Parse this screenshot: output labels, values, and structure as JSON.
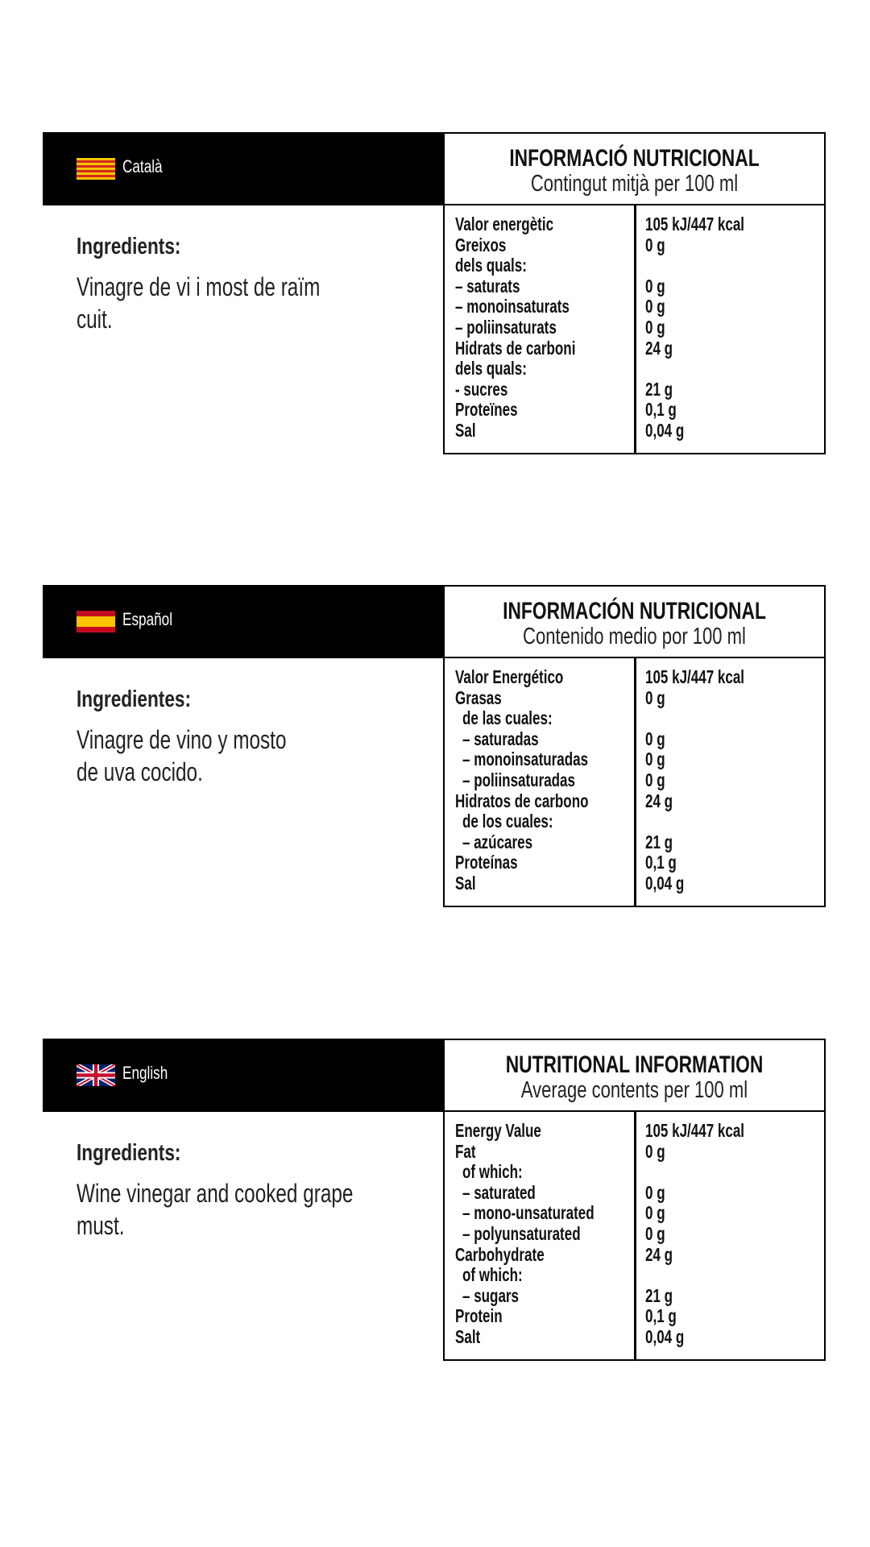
{
  "sections": [
    {
      "language": "Català",
      "flag": "catalonia-flag-icon",
      "ingredients_label": "Ingredients:",
      "ingredients_lines": [
        "Vinagre de vi i most de raïm",
        "cuit."
      ],
      "nutrition": {
        "title": "INFORMACIÓ NUTRICIONAL",
        "subtitle": "Contingut mitjà per 100 ml",
        "rows": [
          {
            "label": "Valor energètic",
            "value": "105 kJ/447 kcal",
            "level": 0
          },
          {
            "label": "Greixos",
            "value": "0 g",
            "level": 0
          },
          {
            "label": "dels quals:",
            "value": "",
            "level": 0
          },
          {
            "label": "– saturats",
            "value": "0 g",
            "level": 0
          },
          {
            "label": "– monoinsaturats",
            "value": "0 g",
            "level": 0
          },
          {
            "label": "– poliinsaturats",
            "value": "0 g",
            "level": 0
          },
          {
            "label": "Hidrats de carboni",
            "value": "24 g",
            "level": 0
          },
          {
            "label": "dels quals:",
            "value": "",
            "level": 0
          },
          {
            "label": "- sucres",
            "value": "21 g",
            "level": 0
          },
          {
            "label": "Proteïnes",
            "value": "0,1 g",
            "level": 0
          },
          {
            "label": "Sal",
            "value": "0,04 g",
            "level": 0
          }
        ]
      }
    },
    {
      "language": "Español",
      "flag": "spain-flag-icon",
      "ingredients_label": "Ingredientes:",
      "ingredients_lines": [
        "Vinagre de vino y mosto",
        "de uva cocido."
      ],
      "nutrition": {
        "title": "INFORMACIÓN NUTRICIONAL",
        "subtitle": "Contenido medio por 100 ml",
        "rows": [
          {
            "label": "Valor Energético",
            "value": "105 kJ/447 kcal",
            "level": 0
          },
          {
            "label": "Grasas",
            "value": "0 g",
            "level": 0
          },
          {
            "label": "de las cuales:",
            "value": "",
            "level": 1
          },
          {
            "label": "– saturadas",
            "value": "0 g",
            "level": 1
          },
          {
            "label": "– monoinsaturadas",
            "value": "0 g",
            "level": 1
          },
          {
            "label": "– poliinsaturadas",
            "value": "0 g",
            "level": 1
          },
          {
            "label": "Hidratos de carbono",
            "value": "24 g",
            "level": 0
          },
          {
            "label": "de los cuales:",
            "value": "",
            "level": 1
          },
          {
            "label": "– azúcares",
            "value": "21 g",
            "level": 1
          },
          {
            "label": "Proteínas",
            "value": "0,1 g",
            "level": 0
          },
          {
            "label": "Sal",
            "value": "0,04 g",
            "level": 0
          }
        ]
      }
    },
    {
      "language": "English",
      "flag": "uk-flag-icon",
      "ingredients_label": "Ingredients:",
      "ingredients_lines": [
        "Wine vinegar and cooked grape",
        "must."
      ],
      "nutrition": {
        "title": "NUTRITIONAL INFORMATION",
        "subtitle": "Average contents per 100 ml",
        "rows": [
          {
            "label": "Energy Value",
            "value": "105 kJ/447 kcal",
            "level": 0
          },
          {
            "label": "Fat",
            "value": "0 g",
            "level": 0
          },
          {
            "label": "of which:",
            "value": "",
            "level": 1
          },
          {
            "label": "– saturated",
            "value": "0 g",
            "level": 1
          },
          {
            "label": "– mono-unsaturated",
            "value": "0 g",
            "level": 1
          },
          {
            "label": "– polyunsaturated",
            "value": "0 g",
            "level": 1
          },
          {
            "label": "Carbohydrate",
            "value": "24 g",
            "level": 0
          },
          {
            "label": "of which:",
            "value": "",
            "level": 1
          },
          {
            "label": "– sugars",
            "value": "21 g",
            "level": 1
          },
          {
            "label": "Protein",
            "value": "0,1 g",
            "level": 0
          },
          {
            "label": "Salt",
            "value": "0,04 g",
            "level": 0
          }
        ]
      }
    }
  ]
}
